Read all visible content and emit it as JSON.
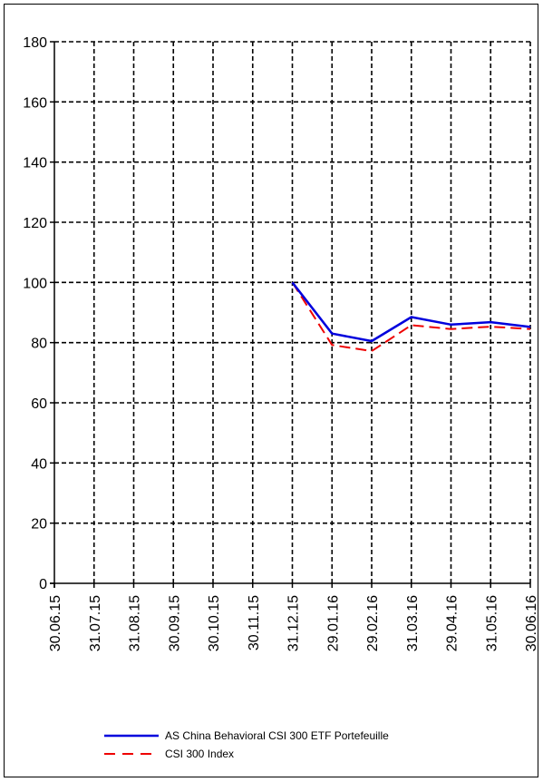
{
  "chart_data": {
    "type": "line",
    "title": "",
    "xlabel": "",
    "ylabel": "",
    "categories": [
      "30.06.15",
      "31.07.15",
      "31.08.15",
      "30.09.15",
      "30.10.15",
      "30.11.15",
      "31.12.15",
      "29.01.16",
      "29.02.16",
      "31.03.16",
      "29.04.16",
      "31.05.16",
      "30.06.16"
    ],
    "ylim": [
      0,
      180
    ],
    "yticks": [
      0,
      20,
      40,
      60,
      80,
      100,
      120,
      140,
      160,
      180
    ],
    "grid": true,
    "legend_position": "bottom",
    "series": [
      {
        "name": "AS China Behavioral CSI 300 ETF Portefeuille",
        "color": "#0000dd",
        "dash": "solid",
        "values": [
          null,
          null,
          null,
          null,
          null,
          null,
          100,
          83,
          80.5,
          88.5,
          86,
          86.8,
          85.2
        ]
      },
      {
        "name": "CSI 300 Index",
        "color": "#ee0000",
        "dash": "dashed",
        "values": [
          null,
          null,
          null,
          null,
          null,
          null,
          100,
          79.2,
          77.2,
          85.8,
          84.5,
          85.3,
          84.5
        ]
      }
    ]
  }
}
